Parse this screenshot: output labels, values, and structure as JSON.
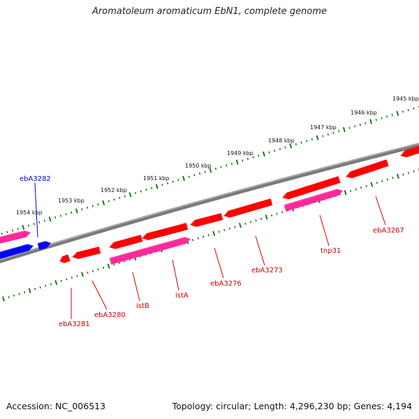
{
  "title": "Aromatoleum aromaticum EbN1, complete genome",
  "footer": {
    "accession": "Accession: NC_006513",
    "topology": "Topology: circular; Length: 4,296,230 bp; Genes: 4,194"
  },
  "colors": {
    "backbone": "#7a7a7a",
    "gc_ticks": "#1a7a1a",
    "gene_red": "#ff0000",
    "gene_pink": "#ff2a9a",
    "gene_blue": "#0000ff",
    "label_red": "#cc0000",
    "label_blue": "#0000cc"
  },
  "kbp_labels": [
    "1954 kbp",
    "1953 kbp",
    "1952 kbp",
    "1951 kbp",
    "1950 kbp",
    "1949 kbp",
    "1948 kbp",
    "1947 kbp",
    "1946 kbp",
    "1945 kbp"
  ],
  "gene_labels": [
    {
      "name": "ebA3282",
      "color": "blue"
    },
    {
      "name": "ebA3281",
      "color": "red"
    },
    {
      "name": "ebA3280",
      "color": "red"
    },
    {
      "name": "istB",
      "color": "red"
    },
    {
      "name": "istA",
      "color": "red"
    },
    {
      "name": "ebA3276",
      "color": "red"
    },
    {
      "name": "ebA3273",
      "color": "red"
    },
    {
      "name": "tnp31",
      "color": "red"
    },
    {
      "name": "ebA3267",
      "color": "red"
    }
  ]
}
